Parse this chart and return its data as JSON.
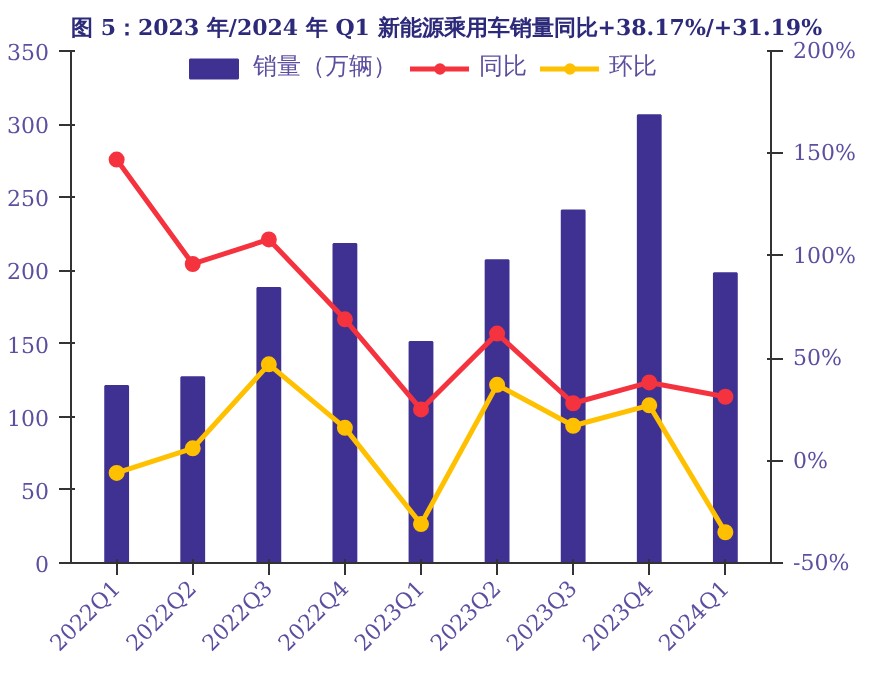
{
  "chart_data": {
    "type": "bar",
    "title": "图 5：2023 年/2024 年 Q1 新能源乘用车销量同比+38.17%/+31.19%",
    "categories": [
      "2022Q1",
      "2022Q2",
      "2022Q3",
      "2022Q4",
      "2023Q1",
      "2023Q2",
      "2023Q3",
      "2023Q4",
      "2024Q1"
    ],
    "series": [
      {
        "name": "销量（万辆）",
        "color": "#3f3192",
        "values": [
          121,
          127,
          188,
          218,
          151,
          207,
          241,
          306,
          198
        ]
      },
      {
        "name": "同比",
        "type": "line",
        "axis": "y2",
        "color": "#f5333f",
        "values": [
          147,
          96,
          108,
          69,
          25,
          62,
          28,
          38.17,
          31.19
        ]
      },
      {
        "name": "环比",
        "type": "line",
        "axis": "y2",
        "color": "#ffc000",
        "values": [
          -6,
          6,
          47,
          16,
          -31,
          37,
          17,
          27,
          -35
        ]
      }
    ],
    "ylim": [
      0,
      350
    ],
    "yticks": [
      0,
      50,
      100,
      150,
      200,
      250,
      300,
      350
    ],
    "y2lim": [
      -50,
      200
    ],
    "y2ticks": [
      {
        "value": -50,
        "label": "-50%"
      },
      {
        "value": 0,
        "label": "0%"
      },
      {
        "value": 50,
        "label": "50%"
      },
      {
        "value": 100,
        "label": "100%"
      },
      {
        "value": 150,
        "label": "150%"
      },
      {
        "value": 200,
        "label": "200%"
      }
    ],
    "grid": false,
    "legend": "top",
    "marker": "circle",
    "line_style": "solid"
  }
}
